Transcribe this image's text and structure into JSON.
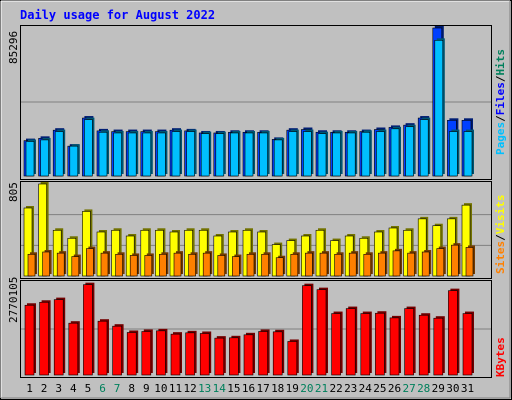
{
  "chart_data": [
    {
      "type": "bar",
      "title": "Daily usage for August 2022",
      "ylabel": "",
      "scale_label": "85296",
      "ylim": [
        0,
        85296
      ],
      "categories": [
        "1",
        "2",
        "3",
        "4",
        "5",
        "6",
        "7",
        "8",
        "9",
        "10",
        "11",
        "12",
        "13",
        "14",
        "15",
        "16",
        "17",
        "18",
        "19",
        "20",
        "21",
        "22",
        "23",
        "24",
        "25",
        "26",
        "27",
        "28",
        "29",
        "30",
        "31"
      ],
      "weekend_days": [
        "6",
        "7",
        "13",
        "14",
        "20",
        "21",
        "27",
        "28"
      ],
      "legend": {
        "pages": "Pages",
        "files": "Files",
        "hits": "Hits",
        "separator": "/"
      },
      "series": [
        {
          "name": "Hits",
          "color": "#0040ff",
          "values": [
            20400,
            21700,
            26400,
            17200,
            33400,
            26000,
            25600,
            25600,
            25600,
            25600,
            26400,
            26000,
            24800,
            24800,
            25200,
            25200,
            25200,
            21100,
            26400,
            26800,
            25200,
            25200,
            25200,
            25600,
            26800,
            28000,
            29300,
            33400,
            85296,
            32100,
            32100
          ]
        },
        {
          "name": "Files",
          "color": "#00c0ff",
          "values": [
            19900,
            20800,
            25600,
            17200,
            32500,
            25200,
            24800,
            24800,
            24800,
            24800,
            25600,
            25600,
            24400,
            24400,
            24800,
            24800,
            24800,
            20800,
            25600,
            25600,
            24400,
            24800,
            24800,
            25200,
            25600,
            27200,
            28400,
            32500,
            78200,
            25600,
            25600
          ]
        }
      ]
    },
    {
      "type": "bar",
      "title": "",
      "scale_label": "805",
      "ylim": [
        0,
        805
      ],
      "legend": {
        "sites": "Sites",
        "visits": "Visits",
        "separator": "/"
      },
      "series": [
        {
          "name": "Visits",
          "color": "#ffff00",
          "values": [
            595,
            805,
            400,
            330,
            565,
            385,
            400,
            350,
            400,
            400,
            385,
            400,
            400,
            350,
            385,
            400,
            385,
            275,
            310,
            350,
            400,
            310,
            350,
            330,
            385,
            420,
            400,
            500,
            440,
            500,
            620
          ]
        },
        {
          "name": "Sites",
          "color": "#ff8000",
          "values": [
            190,
            210,
            200,
            170,
            240,
            200,
            190,
            180,
            180,
            190,
            200,
            190,
            200,
            180,
            170,
            190,
            190,
            160,
            190,
            200,
            200,
            190,
            200,
            190,
            200,
            220,
            200,
            210,
            240,
            270,
            250
          ]
        }
      ]
    },
    {
      "type": "bar",
      "title": "",
      "scale_label": "2770105",
      "ylim": [
        0,
        2770105
      ],
      "legend": {
        "kbytes": "KBytes"
      },
      "series": [
        {
          "name": "KBytes",
          "color": "#ff0000",
          "values": [
            2100000,
            2190000,
            2270000,
            1560000,
            2720000,
            1620000,
            1470000,
            1280000,
            1310000,
            1330000,
            1230000,
            1270000,
            1250000,
            1110000,
            1120000,
            1210000,
            1310000,
            1300000,
            1010000,
            2690000,
            2570000,
            1850000,
            2000000,
            1850000,
            1860000,
            1720000,
            2000000,
            1800000,
            1710000,
            2540000,
            1850000
          ]
        }
      ]
    }
  ],
  "colors": {
    "background": "#c0c0c0",
    "plot": "#c0c0c0",
    "title": "#0000ff",
    "weekday_label": "#000000",
    "weekend_label": "#00805c",
    "hits_label": "#00805c",
    "files_label": "#0000ff",
    "pages_label": "#00c0ff",
    "visits_label": "#ffff00",
    "sites_label": "#ff8000",
    "kbytes_label": "#ff0000",
    "separator": "#000000"
  }
}
